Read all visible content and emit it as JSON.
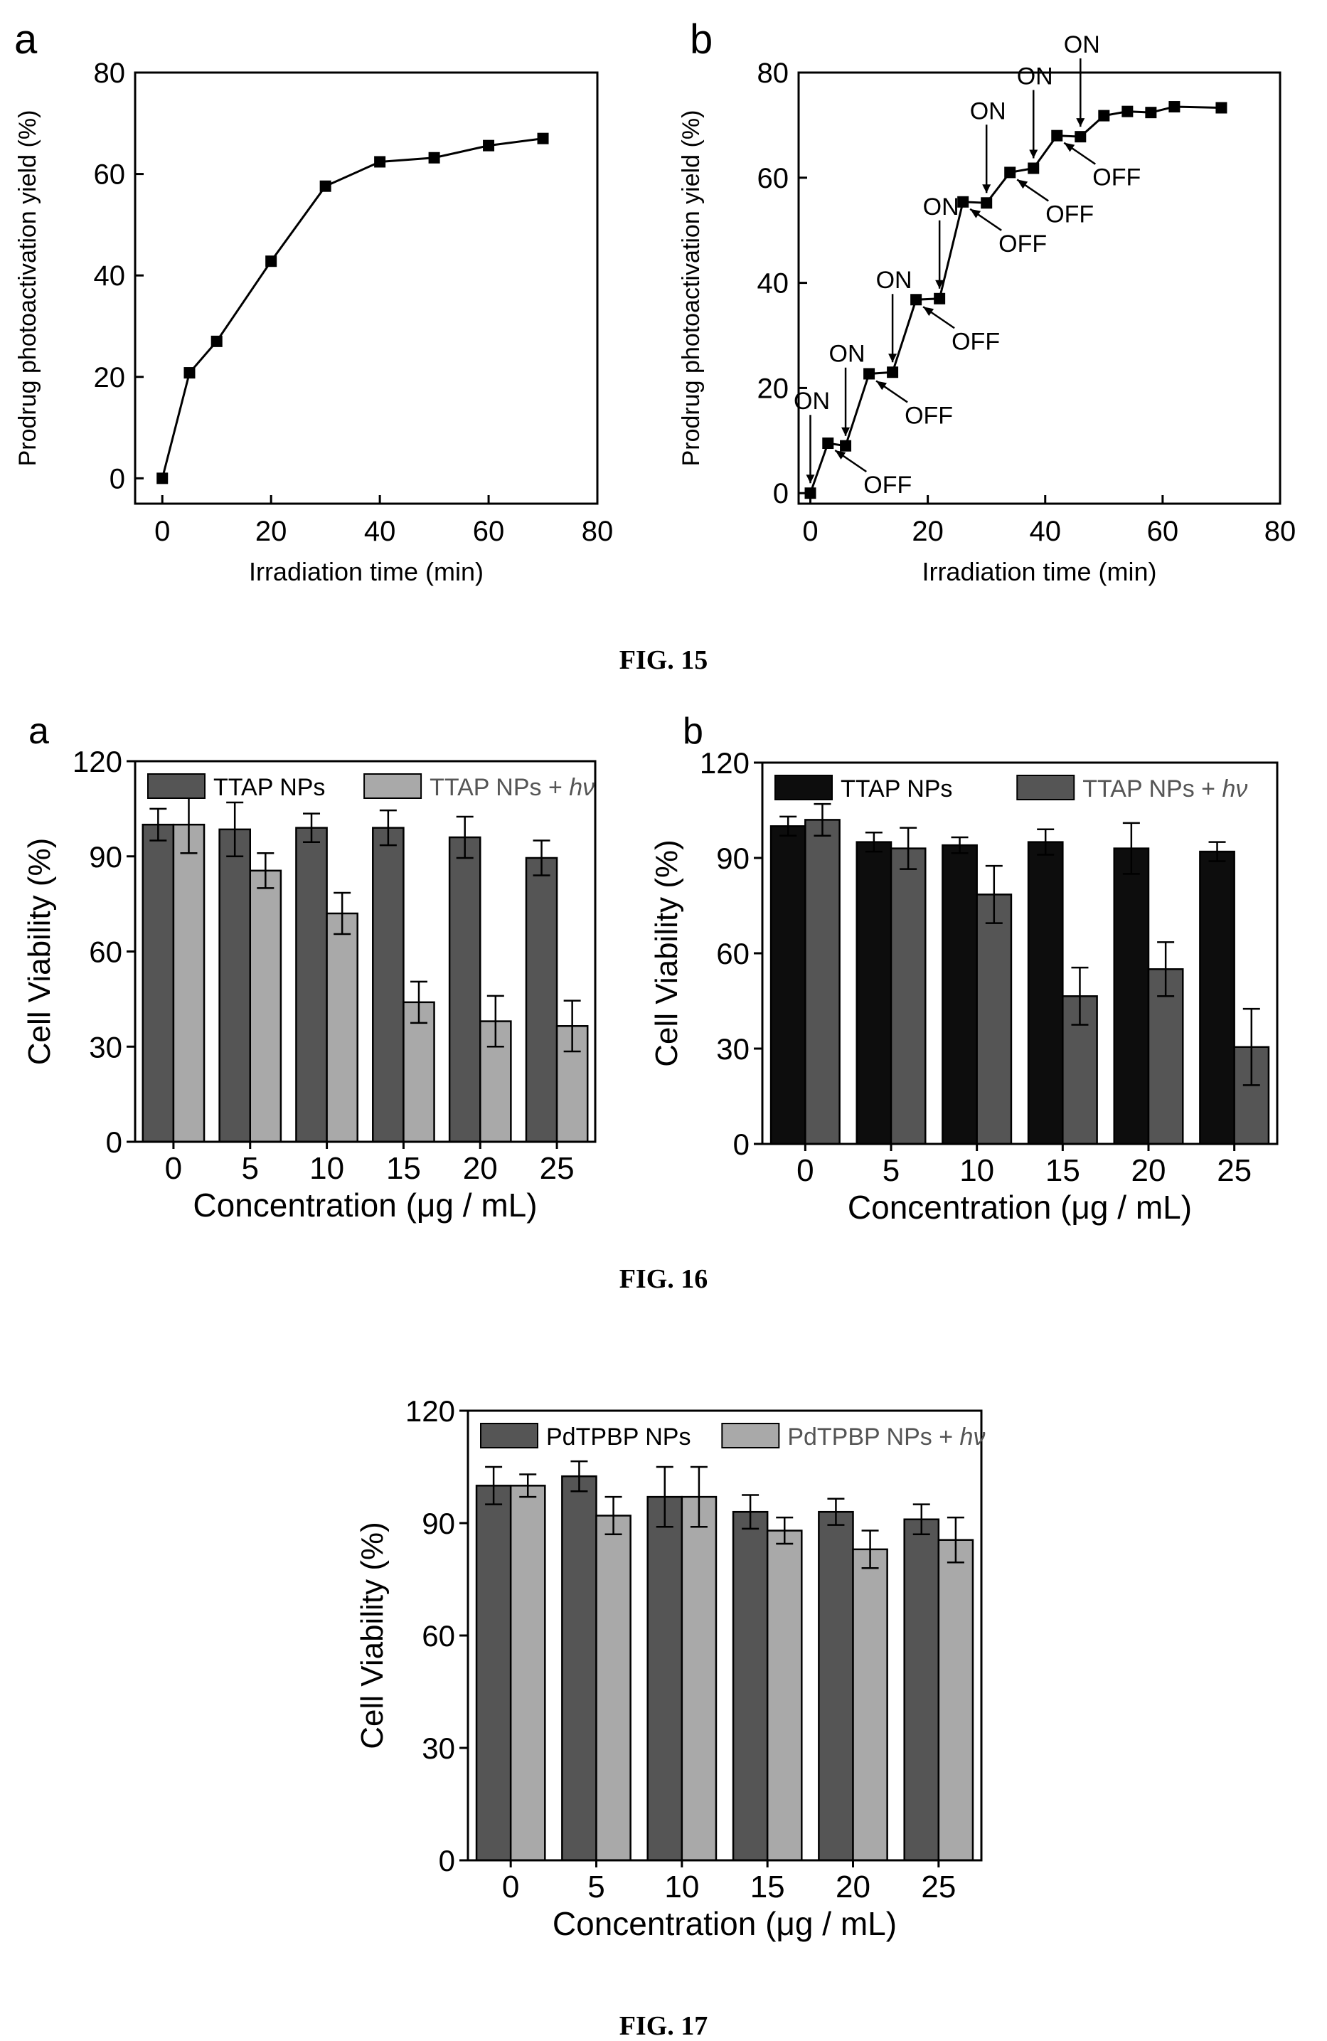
{
  "figures": [
    {
      "caption": "FIG. 15"
    },
    {
      "caption": "FIG. 16"
    },
    {
      "caption": "FIG. 17"
    }
  ],
  "chart_data": [
    {
      "id": "fig15a",
      "panel_label": "a",
      "type": "line",
      "xlabel": "Irradiation time (min)",
      "ylabel": "Prodrug photoactivation yield (%)",
      "xlim": [
        -5,
        80
      ],
      "ylim": [
        -5,
        80
      ],
      "xticks": [
        0,
        20,
        40,
        60,
        80
      ],
      "yticks": [
        0,
        20,
        40,
        60,
        80
      ],
      "grid": false,
      "series": [
        {
          "x": [
            0,
            5,
            10,
            20,
            30,
            40,
            50,
            60,
            70
          ],
          "y": [
            0,
            20.8,
            27,
            42.8,
            57.6,
            62.4,
            63.2,
            65.6,
            67
          ]
        }
      ]
    },
    {
      "id": "fig15b",
      "panel_label": "b",
      "type": "line",
      "xlabel": "Irradiation time (min)",
      "ylabel": "Prodrug photoactivation yield (%)",
      "xlim": [
        -2,
        80
      ],
      "ylim": [
        -2,
        80
      ],
      "xticks": [
        0,
        20,
        40,
        60,
        80
      ],
      "yticks": [
        0,
        20,
        40,
        60,
        80
      ],
      "grid": false,
      "series": [
        {
          "x": [
            0,
            3,
            6,
            10,
            14,
            18,
            22,
            26,
            30,
            34,
            38,
            42,
            46,
            50,
            54,
            58,
            62,
            70
          ],
          "y": [
            0,
            9.5,
            9,
            22.7,
            23,
            36.8,
            37,
            55.4,
            55.2,
            61,
            61.8,
            68,
            67.8,
            71.8,
            72.6,
            72.4,
            73.5,
            73.3
          ]
        }
      ],
      "annotations": [
        {
          "text": "ON",
          "x": 0,
          "y": 0
        },
        {
          "text": "OFF",
          "x": 3,
          "y": 9.5
        },
        {
          "text": "ON",
          "x": 6,
          "y": 9
        },
        {
          "text": "OFF",
          "x": 10,
          "y": 22.7
        },
        {
          "text": "ON",
          "x": 14,
          "y": 23
        },
        {
          "text": "OFF",
          "x": 18,
          "y": 36.8
        },
        {
          "text": "ON",
          "x": 22,
          "y": 37
        },
        {
          "text": "OFF",
          "x": 26,
          "y": 55.4
        },
        {
          "text": "ON",
          "x": 30,
          "y": 55.2
        },
        {
          "text": "OFF",
          "x": 34,
          "y": 61
        },
        {
          "text": "ON",
          "x": 38,
          "y": 61.8
        },
        {
          "text": "OFF",
          "x": 42,
          "y": 68
        },
        {
          "text": "ON",
          "x": 46,
          "y": 67.8
        }
      ]
    },
    {
      "id": "fig16a",
      "panel_label": "a",
      "type": "bar",
      "xlabel": "Concentration (μg / mL)",
      "ylabel": "Cell Viability (%)",
      "ylim": [
        0,
        120
      ],
      "yticks": [
        0,
        30,
        60,
        90,
        120
      ],
      "grid": false,
      "legend": "top",
      "categories": [
        "0",
        "5",
        "10",
        "15",
        "20",
        "25"
      ],
      "series": [
        {
          "name": "TTAP NPs",
          "color": "#555555",
          "values": [
            100,
            98.5,
            99,
            99,
            96,
            89.5
          ],
          "errors": [
            5,
            8.5,
            4.5,
            5.5,
            6.5,
            5.5
          ]
        },
        {
          "name": "TTAP NPs + ",
          "name_italic": "hν",
          "color": "#a9a9a9",
          "values": [
            100,
            85.5,
            72,
            44,
            38,
            36.5
          ],
          "errors": [
            9,
            5.5,
            6.5,
            6.5,
            8,
            8
          ]
        }
      ]
    },
    {
      "id": "fig16b",
      "panel_label": "b",
      "type": "bar",
      "xlabel": "Concentration (μg / mL)",
      "ylabel": "Cell Viability (%)",
      "ylim": [
        0,
        120
      ],
      "yticks": [
        0,
        30,
        60,
        90,
        120
      ],
      "grid": false,
      "legend": "top",
      "categories": [
        "0",
        "5",
        "10",
        "15",
        "20",
        "25"
      ],
      "series": [
        {
          "name": "TTAP NPs",
          "color": "#0d0d0d",
          "values": [
            100,
            95,
            94,
            95,
            93,
            92
          ],
          "errors": [
            3,
            3,
            2.5,
            4,
            8,
            3
          ]
        },
        {
          "name": "TTAP NPs + ",
          "name_italic": "hν",
          "color": "#555555",
          "values": [
            102,
            93,
            78.5,
            46.5,
            55,
            30.5
          ],
          "errors": [
            5,
            6.5,
            9,
            9,
            8.5,
            12
          ]
        }
      ]
    },
    {
      "id": "fig17",
      "panel_label": "",
      "type": "bar",
      "xlabel": "Concentration (μg / mL)",
      "ylabel": "Cell Viability (%)",
      "ylim": [
        0,
        120
      ],
      "yticks": [
        0,
        30,
        60,
        90,
        120
      ],
      "grid": false,
      "legend": "top",
      "categories": [
        "0",
        "5",
        "10",
        "15",
        "20",
        "25"
      ],
      "series": [
        {
          "name": "PdTPBP NPs",
          "color": "#555555",
          "values": [
            100,
            102.5,
            97,
            93,
            93,
            91
          ],
          "errors": [
            5,
            4,
            8,
            4.5,
            3.5,
            4
          ]
        },
        {
          "name": "PdTPBP NPs + ",
          "name_italic": "hν",
          "color": "#a9a9a9",
          "values": [
            100,
            92,
            97,
            88,
            83,
            85.5
          ],
          "errors": [
            3,
            5,
            8,
            3.5,
            5,
            6
          ]
        }
      ]
    }
  ]
}
